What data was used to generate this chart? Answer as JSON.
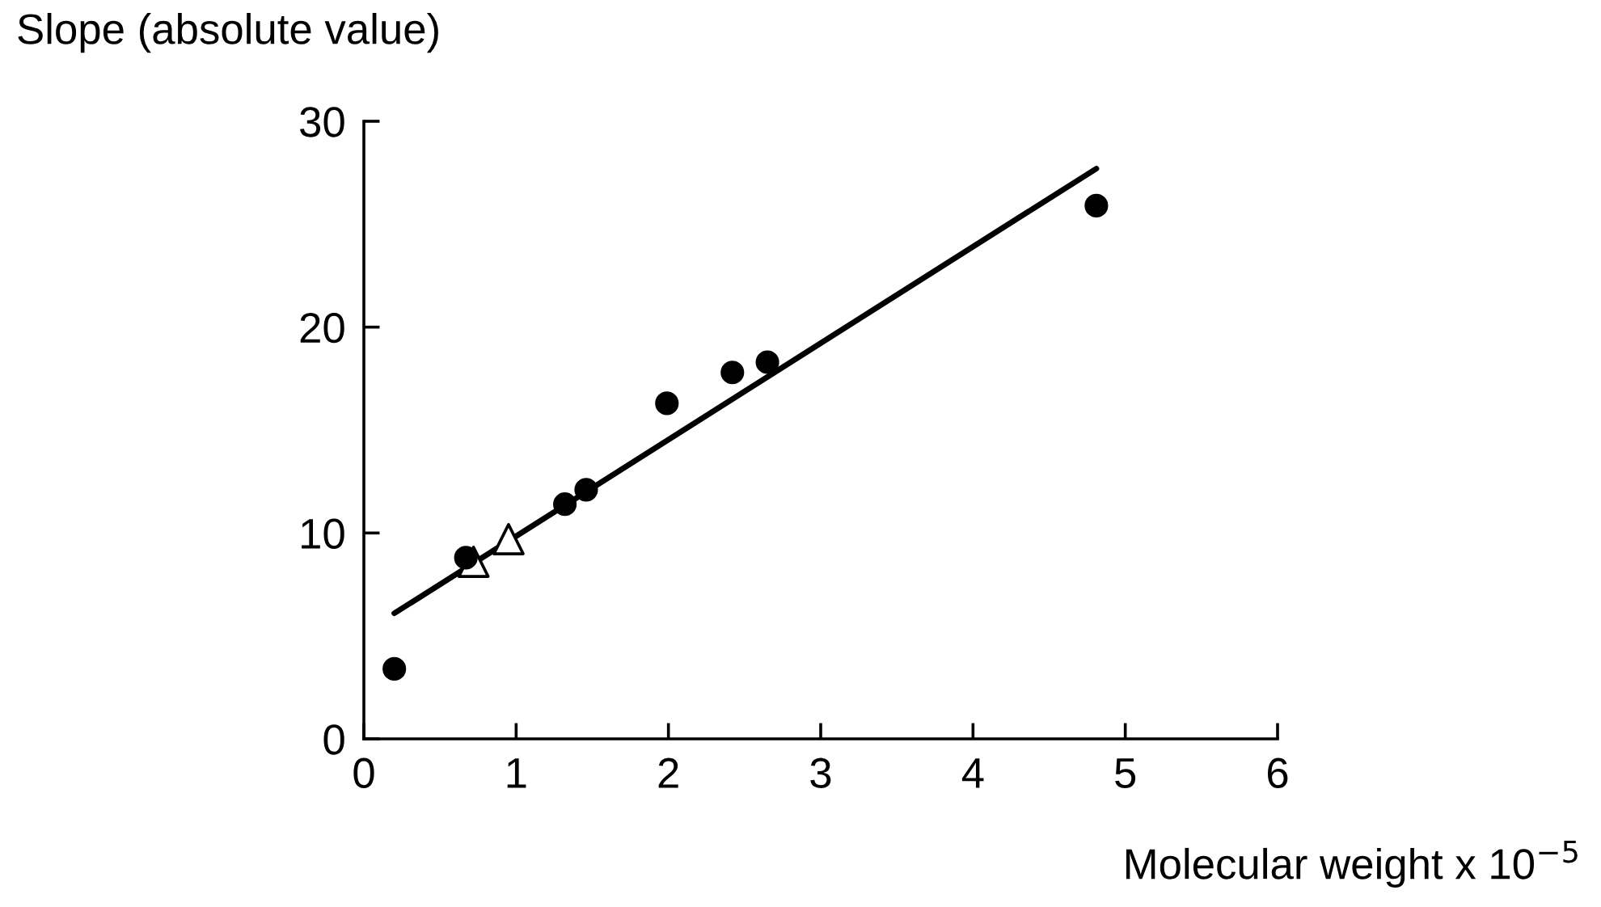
{
  "chart_data": {
    "type": "scatter",
    "xlabel": "Molecular weight x 10$^{−5}$",
    "ylabel": "Slope (absolute value)",
    "xlim": [
      0,
      6
    ],
    "ylim": [
      0,
      30
    ],
    "xticks": [
      0,
      1,
      2,
      3,
      4,
      5,
      6
    ],
    "yticks": [
      0,
      10,
      20,
      30
    ],
    "grid": false,
    "legend": false,
    "series": [
      {
        "marker": "circle",
        "color": "#000000",
        "x": [
          0.2,
          0.67,
          1.32,
          1.46,
          1.99,
          2.42,
          2.65,
          4.81
        ],
        "values": [
          3.4,
          8.8,
          11.4,
          12.1,
          16.3,
          17.8,
          18.3,
          25.9
        ]
      },
      {
        "marker": "triangle",
        "color": "#000000",
        "x": [
          0.72,
          0.95
        ],
        "values": [
          8.6,
          9.7
        ]
      },
      {
        "type": "line",
        "marker": "none",
        "line_style": "solid",
        "color": "#000000",
        "x": [
          0.2,
          4.81
        ],
        "values": [
          6.1,
          27.7
        ]
      }
    ]
  }
}
